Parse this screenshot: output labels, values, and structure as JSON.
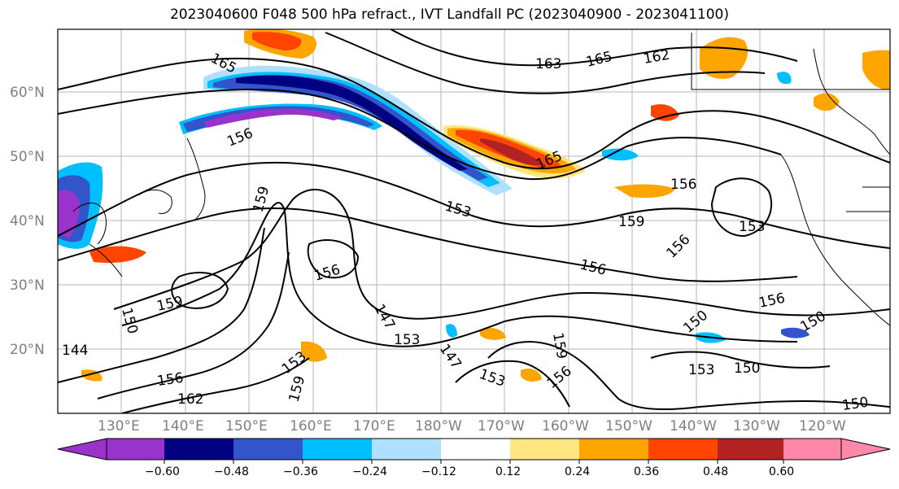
{
  "title": "2023040600 F048 500 hPa refract., IVT Landfall PC (2023040900 - 2023041100)",
  "lat_labels": [
    "60°N",
    "50°N",
    "40°N",
    "30°N",
    "20°N"
  ],
  "lon_labels": [
    "130°E",
    "140°E",
    "150°E",
    "160°E",
    "170°E",
    "180°W",
    "170°W",
    "160°W",
    "150°W",
    "140°W",
    "130°W",
    "120°W"
  ],
  "contour_labels": [
    "165",
    "163",
    "165",
    "162",
    "156",
    "165",
    "159",
    "156",
    "153",
    "159",
    "156",
    "153",
    "156",
    "156",
    "159",
    "150",
    "153",
    "144",
    "147",
    "153",
    "153",
    "159",
    "156",
    "147",
    "153",
    "150",
    "150",
    "156",
    "150",
    "156",
    "162",
    "159",
    "150"
  ],
  "colorbar": {
    "colors": [
      "#9933cc",
      "#000080",
      "#3355cc",
      "#00bfff",
      "#b0e0ff",
      "#ffffff",
      "#ffe680",
      "#ffa500",
      "#ff4500",
      "#b22222",
      "#ff88aa"
    ],
    "tick_labels": [
      "−0.60",
      "−0.48",
      "−0.36",
      "−0.24",
      "−0.12",
      "0.12",
      "0.24",
      "0.36",
      "0.48",
      "0.60"
    ]
  }
}
